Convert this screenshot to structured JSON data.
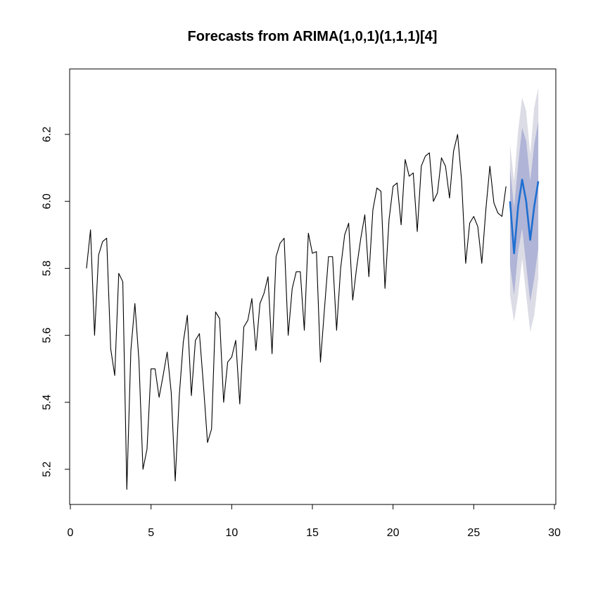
{
  "chart_data": {
    "type": "line",
    "title": "Forecasts from ARIMA(1,0,1)(1,1,1)[4]",
    "xlabel": "",
    "ylabel": "",
    "xlim": [
      0,
      30
    ],
    "ylim": [
      5.14,
      6.35
    ],
    "x_ticks": [
      0,
      5,
      10,
      15,
      20,
      25,
      30
    ],
    "y_ticks": [
      5.2,
      5.4,
      5.6,
      5.8,
      6.0,
      6.2
    ],
    "x_tick_labels": [
      "0",
      "5",
      "10",
      "15",
      "20",
      "25",
      "30"
    ],
    "y_tick_labels": [
      "5.2",
      "5.4",
      "5.6",
      "5.8",
      "6.0",
      "6.2"
    ],
    "series_start": 1,
    "frequency": 4,
    "observed": [
      5.8,
      5.915,
      5.6,
      5.84,
      5.88,
      5.89,
      5.56,
      5.48,
      5.785,
      5.76,
      5.14,
      5.555,
      5.695,
      5.525,
      5.2,
      5.26,
      5.5,
      5.5,
      5.415,
      5.48,
      5.55,
      5.43,
      5.165,
      5.42,
      5.58,
      5.66,
      5.42,
      5.585,
      5.605,
      5.45,
      5.28,
      5.32,
      5.67,
      5.65,
      5.4,
      5.52,
      5.535,
      5.585,
      5.395,
      5.625,
      5.645,
      5.71,
      5.555,
      5.695,
      5.725,
      5.775,
      5.545,
      5.835,
      5.875,
      5.89,
      5.6,
      5.74,
      5.79,
      5.79,
      5.615,
      5.905,
      5.845,
      5.85,
      5.52,
      5.68,
      5.835,
      5.835,
      5.615,
      5.8,
      5.9,
      5.935,
      5.705,
      5.805,
      5.89,
      5.96,
      5.775,
      5.975,
      6.04,
      6.03,
      5.74,
      5.945,
      6.045,
      6.055,
      5.93,
      6.125,
      6.075,
      6.085,
      5.91,
      6.105,
      6.135,
      6.145,
      6.0,
      6.025,
      6.13,
      6.105,
      6.01,
      6.15,
      6.2,
      6.06,
      5.815,
      5.935,
      5.955,
      5.925,
      5.815,
      5.975,
      6.105,
      5.995,
      5.965,
      5.955,
      6.045
    ],
    "forecast_start": 27.25,
    "forecast": {
      "mean": [
        6.0,
        5.845,
        5.985,
        6.065,
        6.0,
        5.885,
        5.985,
        6.06
      ],
      "lo80": [
        5.81,
        5.72,
        5.85,
        5.92,
        5.81,
        5.7,
        5.77,
        5.86
      ],
      "hi80": [
        6.1,
        5.98,
        6.11,
        6.22,
        6.18,
        6.06,
        6.17,
        6.24
      ],
      "lo95": [
        5.72,
        5.64,
        5.72,
        5.83,
        5.72,
        5.61,
        5.66,
        5.77
      ],
      "hi95": [
        6.17,
        6.06,
        6.21,
        6.31,
        6.27,
        6.14,
        6.28,
        6.34
      ]
    },
    "colors": {
      "observed": "#000000",
      "forecast": "#1f6fd1",
      "band80": "#b0b4d6",
      "band95": "#dcdce6"
    },
    "grid": false,
    "legend": "none"
  }
}
